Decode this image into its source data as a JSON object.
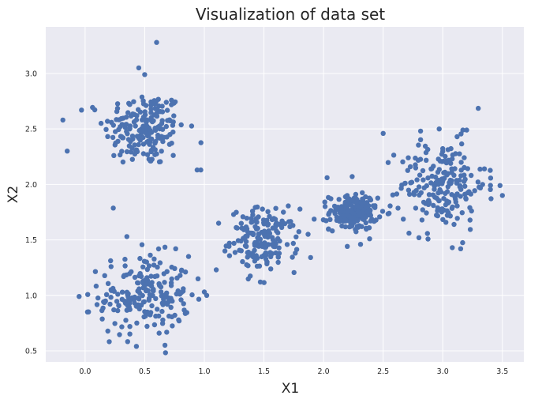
{
  "chart_data": {
    "type": "scatter",
    "title": "Visualization of data set",
    "xlabel": "X1",
    "ylabel": "X2",
    "xlim": [
      -0.33,
      3.68
    ],
    "ylim": [
      0.4,
      3.42
    ],
    "xticks": [
      0.0,
      0.5,
      1.0,
      1.5,
      2.0,
      2.5,
      3.0,
      3.5
    ],
    "xtick_labels": [
      "0.0",
      "0.5",
      "1.0",
      "1.5",
      "2.0",
      "2.5",
      "3.0",
      "3.5"
    ],
    "yticks": [
      0.5,
      1.0,
      1.5,
      2.0,
      2.5,
      3.0
    ],
    "ytick_labels": [
      "0.5",
      "1.0",
      "1.5",
      "2.0",
      "2.5",
      "3.0"
    ],
    "grid": true,
    "background_color": "#eaeaf2",
    "marker_color": "#4c72b0",
    "clusters": [
      {
        "center": [
          0.5,
          2.5
        ],
        "spread": [
          0.17,
          0.17
        ],
        "count": 190
      },
      {
        "center": [
          0.5,
          1.0
        ],
        "spread": [
          0.19,
          0.18
        ],
        "count": 200
      },
      {
        "center": [
          1.5,
          1.5
        ],
        "spread": [
          0.14,
          0.14
        ],
        "count": 170
      },
      {
        "center": [
          2.25,
          1.75
        ],
        "spread": [
          0.1,
          0.08
        ],
        "count": 200
      },
      {
        "center": [
          3.0,
          2.0
        ],
        "spread": [
          0.18,
          0.2
        ],
        "count": 200
      }
    ],
    "points": [
      [
        -0.15,
        2.3
      ],
      [
        0.6,
        3.28
      ],
      [
        0.45,
        3.05
      ],
      [
        0.5,
        2.99
      ],
      [
        -0.03,
        2.67
      ],
      [
        0.94,
        2.13
      ],
      [
        0.97,
        2.13
      ],
      [
        0.35,
        1.53
      ],
      [
        0.43,
        0.54
      ],
      [
        0.67,
        0.55
      ],
      [
        0.02,
        0.85
      ],
      [
        -0.05,
        0.99
      ],
      [
        1.0,
        1.03
      ],
      [
        1.02,
        1.0
      ],
      [
        1.12,
        1.65
      ],
      [
        1.1,
        1.23
      ],
      [
        1.47,
        1.12
      ],
      [
        1.87,
        1.55
      ],
      [
        2.31,
        1.46
      ],
      [
        2.5,
        2.46
      ],
      [
        2.24,
        2.07
      ],
      [
        2.03,
        2.06
      ],
      [
        3.08,
        1.43
      ],
      [
        3.15,
        1.42
      ],
      [
        3.5,
        1.9
      ],
      [
        3.48,
        1.99
      ],
      [
        2.8,
        1.52
      ],
      [
        2.97,
        2.5
      ],
      [
        3.2,
        2.49
      ],
      [
        3.12,
        2.43
      ]
    ]
  }
}
